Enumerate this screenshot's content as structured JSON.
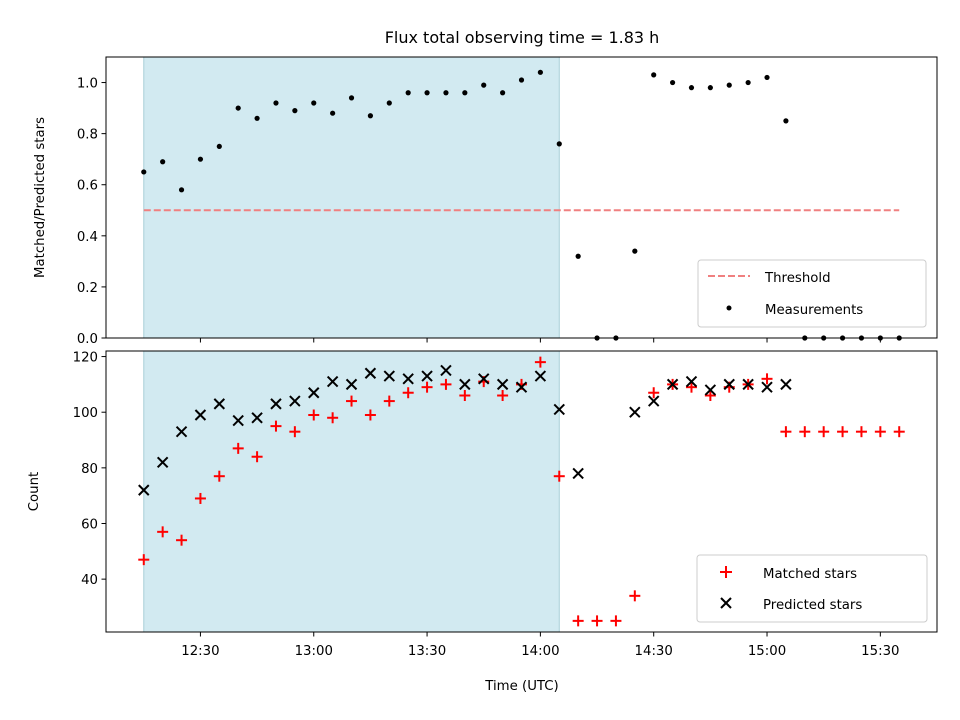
{
  "figure": {
    "title": "Flux total observing time = 1.83 h",
    "xlabel": "Time (UTC)",
    "xticks": [
      "12:30",
      "13:00",
      "13:30",
      "14:00",
      "14:30",
      "15:00",
      "15:30"
    ]
  },
  "chart_data": [
    {
      "type": "scatter",
      "ylabel": "Matched/Predicted stars",
      "ylim": [
        0,
        1.1
      ],
      "yticks": [
        "0.0",
        "0.2",
        "0.4",
        "0.6",
        "0.8",
        "1.0"
      ],
      "xlim": [
        "12:05",
        "15:45"
      ],
      "shaded_region": {
        "start": "12:15",
        "end": "14:05",
        "color": "#add8e6"
      },
      "threshold": {
        "name": "Threshold",
        "value": 0.5,
        "x_start": "12:15",
        "x_end": "15:35",
        "color": "#f08080"
      },
      "series": [
        {
          "name": "Measurements",
          "color": "#000000",
          "marker": "dot",
          "x": [
            "12:15",
            "12:20",
            "12:25",
            "12:30",
            "12:35",
            "12:40",
            "12:45",
            "12:50",
            "12:55",
            "13:00",
            "13:05",
            "13:10",
            "13:15",
            "13:20",
            "13:25",
            "13:30",
            "13:35",
            "13:40",
            "13:45",
            "13:50",
            "13:55",
            "14:00",
            "14:05",
            "14:10",
            "14:15",
            "14:20",
            "14:25",
            "14:30",
            "14:35",
            "14:40",
            "14:45",
            "14:50",
            "14:55",
            "15:00",
            "15:05",
            "15:10",
            "15:15",
            "15:20",
            "15:25",
            "15:30",
            "15:35"
          ],
          "y": [
            0.65,
            0.69,
            0.58,
            0.7,
            0.75,
            0.9,
            0.86,
            0.92,
            0.89,
            0.92,
            0.88,
            0.94,
            0.87,
            0.92,
            0.96,
            0.96,
            0.96,
            0.96,
            0.99,
            0.96,
            1.01,
            1.04,
            0.76,
            0.32,
            0.0,
            0.0,
            0.34,
            1.03,
            1.0,
            0.98,
            0.98,
            0.99,
            1.0,
            1.02,
            0.85,
            0.0,
            0.0,
            0.0,
            0.0,
            0.0,
            0.0
          ]
        }
      ],
      "legend": {
        "position": "lower right",
        "entries": [
          "Threshold",
          "Measurements"
        ]
      }
    },
    {
      "type": "scatter",
      "ylabel": "Count",
      "ylim": [
        21,
        122
      ],
      "yticks": [
        "40",
        "60",
        "80",
        "100",
        "120"
      ],
      "xlim": [
        "12:05",
        "15:45"
      ],
      "shaded_region": {
        "start": "12:15",
        "end": "14:05",
        "color": "#add8e6"
      },
      "series": [
        {
          "name": "Matched stars",
          "color": "#ff0000",
          "marker": "plus",
          "x": [
            "12:15",
            "12:20",
            "12:25",
            "12:30",
            "12:35",
            "12:40",
            "12:45",
            "12:50",
            "12:55",
            "13:00",
            "13:05",
            "13:10",
            "13:15",
            "13:20",
            "13:25",
            "13:30",
            "13:35",
            "13:40",
            "13:45",
            "13:50",
            "13:55",
            "14:00",
            "14:05",
            "14:10",
            "14:15",
            "14:20",
            "14:25",
            "14:30",
            "14:35",
            "14:40",
            "14:45",
            "14:50",
            "14:55",
            "15:00",
            "15:05",
            "15:10",
            "15:15",
            "15:20",
            "15:25",
            "15:30",
            "15:35"
          ],
          "y": [
            47,
            57,
            54,
            69,
            77,
            87,
            84,
            95,
            93,
            99,
            98,
            104,
            99,
            104,
            107,
            109,
            110,
            106,
            111,
            106,
            110,
            118,
            77,
            25,
            25,
            25,
            34,
            107,
            110,
            109,
            106,
            109,
            110,
            112,
            93,
            93,
            93,
            93,
            93,
            93,
            93
          ]
        },
        {
          "name": "Predicted stars",
          "color": "#000000",
          "marker": "x",
          "x": [
            "12:15",
            "12:20",
            "12:25",
            "12:30",
            "12:35",
            "12:40",
            "12:45",
            "12:50",
            "12:55",
            "13:00",
            "13:05",
            "13:10",
            "13:15",
            "13:20",
            "13:25",
            "13:30",
            "13:35",
            "13:40",
            "13:45",
            "13:50",
            "13:55",
            "14:00",
            "14:05",
            "14:10",
            "14:25",
            "14:30",
            "14:35",
            "14:40",
            "14:45",
            "14:50",
            "14:55",
            "15:00",
            "15:05"
          ],
          "y": [
            72,
            82,
            93,
            99,
            103,
            97,
            98,
            103,
            104,
            107,
            111,
            110,
            114,
            113,
            112,
            113,
            115,
            110,
            112,
            110,
            109,
            113,
            101,
            78,
            100,
            104,
            110,
            111,
            108,
            110,
            110,
            109,
            110
          ]
        }
      ],
      "legend": {
        "position": "lower right",
        "entries": [
          "Matched stars",
          "Predicted stars"
        ]
      }
    }
  ]
}
